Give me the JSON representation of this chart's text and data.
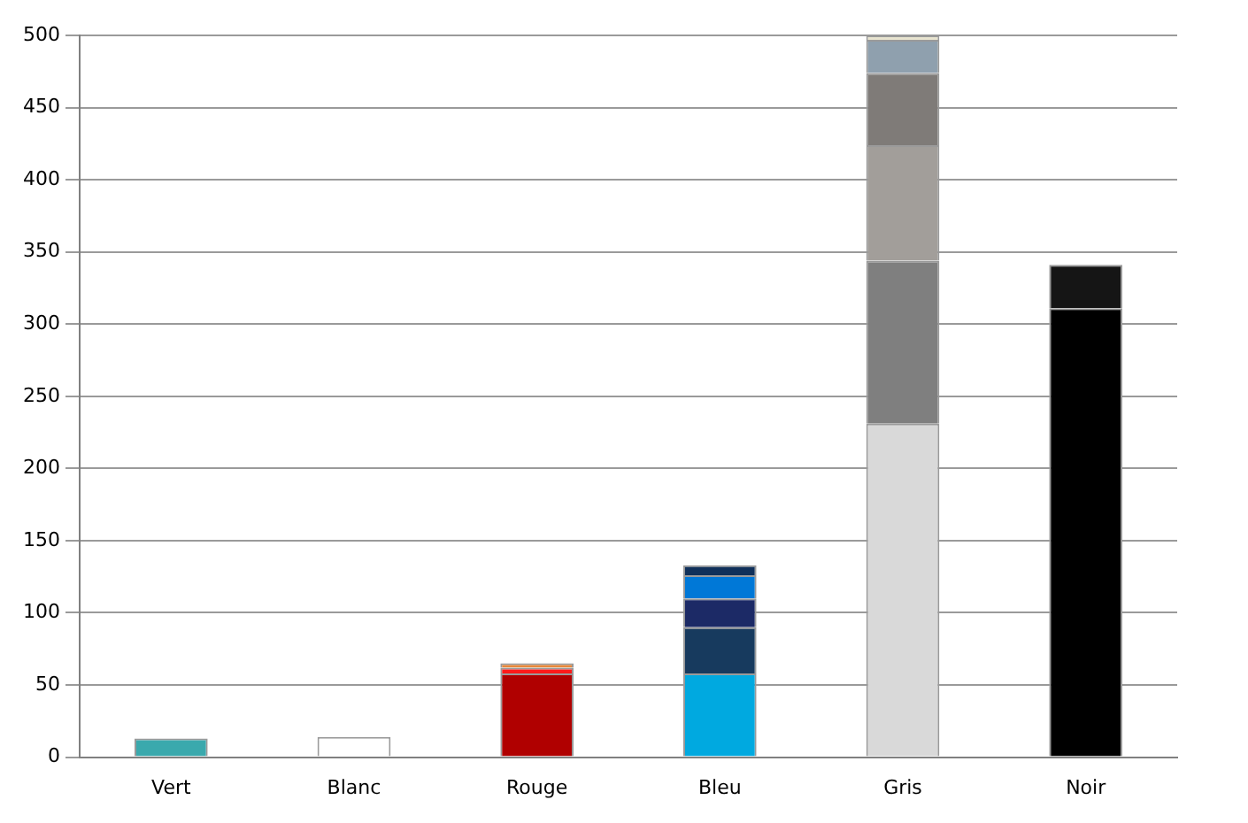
{
  "chart_data": {
    "type": "bar",
    "stacked": true,
    "categories": [
      "Vert",
      "Blanc",
      "Rouge",
      "Bleu",
      "Gris",
      "Noir"
    ],
    "series": [
      {
        "colors": [
          "#3aa9ad",
          "#ffffff",
          "#b00000",
          "#00a9e0",
          "#d9d9d9",
          "#000000"
        ],
        "values": [
          13,
          14,
          58,
          58,
          231,
          311
        ]
      },
      {
        "colors": [
          null,
          null,
          "#ff1a1a",
          "#173a5e",
          "#7f7f7f",
          "#151515"
        ],
        "values": [
          null,
          null,
          4,
          32,
          113,
          30
        ]
      },
      {
        "colors": [
          null,
          null,
          "#e8883a",
          "#1c2a66",
          "#a29e9a",
          null
        ],
        "values": [
          null,
          null,
          3,
          20,
          80,
          null
        ]
      },
      {
        "colors": [
          null,
          null,
          null,
          "#0078d7",
          "#7f7b78",
          null
        ],
        "values": [
          null,
          null,
          null,
          16,
          50,
          null
        ]
      },
      {
        "colors": [
          null,
          null,
          null,
          "#10305a",
          "#8fa0ae",
          null
        ],
        "values": [
          null,
          null,
          null,
          7,
          23,
          null
        ]
      },
      {
        "colors": [
          null,
          null,
          null,
          null,
          "#e8e4d0",
          null
        ],
        "values": [
          null,
          null,
          null,
          null,
          3,
          null
        ]
      }
    ],
    "ylim": [
      0,
      500
    ],
    "yticks": [
      0,
      50,
      100,
      150,
      200,
      250,
      300,
      350,
      400,
      450,
      500
    ],
    "grid": "y",
    "legend": false
  }
}
